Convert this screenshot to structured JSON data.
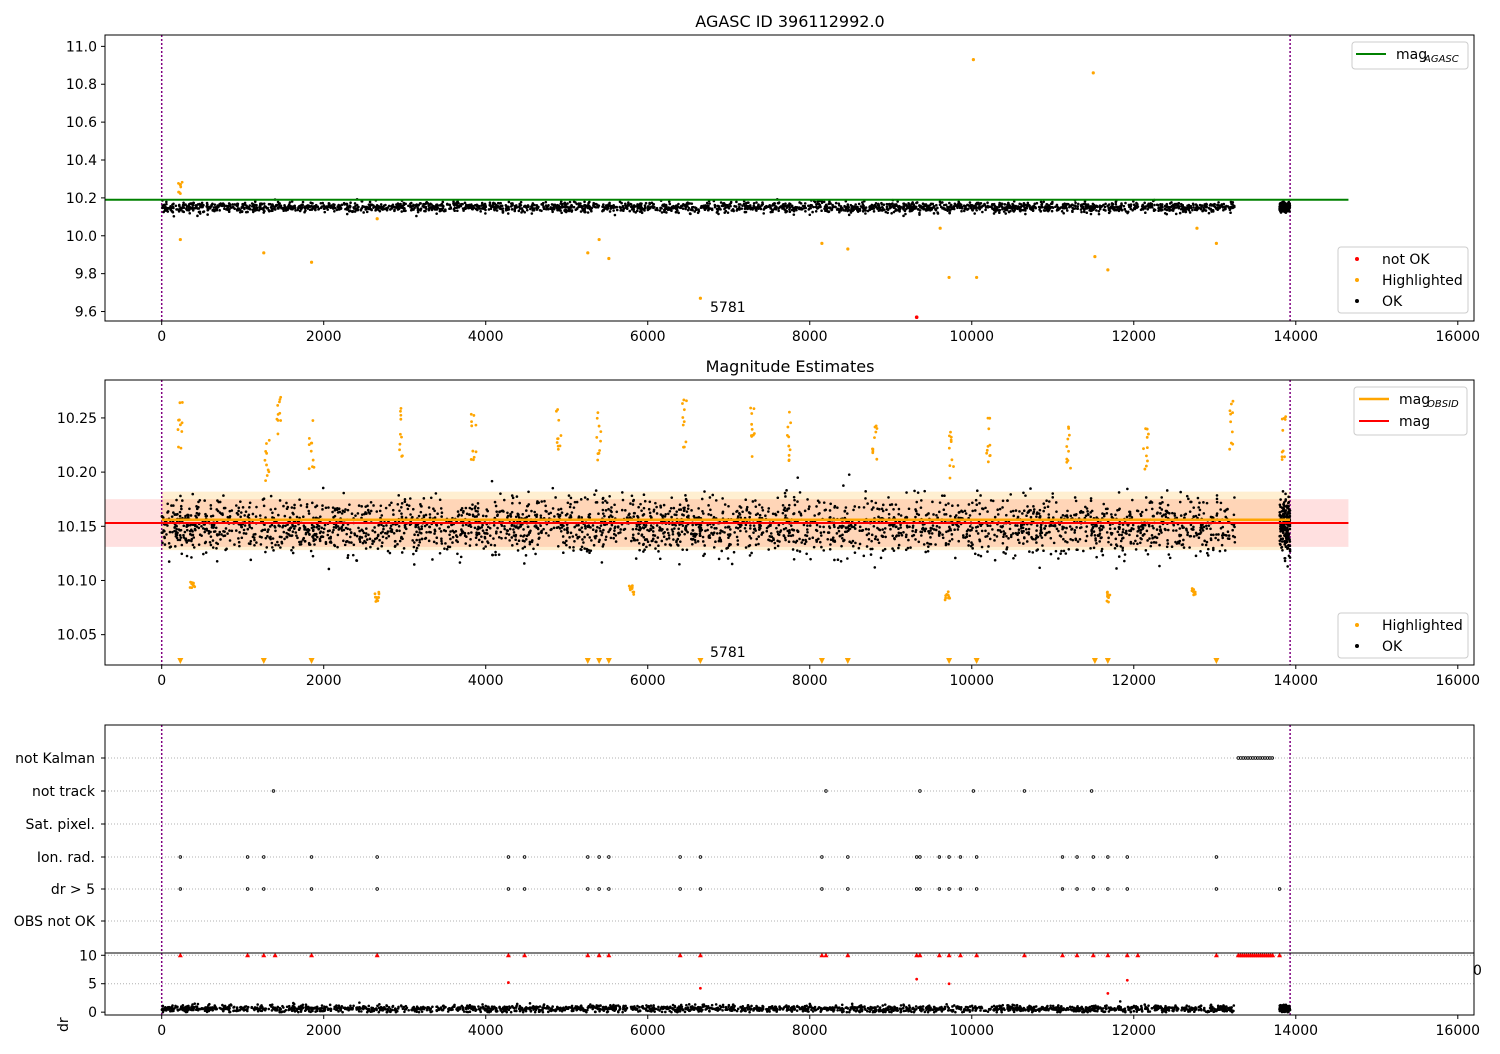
{
  "chart_data": [
    {
      "type": "scatter",
      "title": "AGASC ID 396112992.0",
      "xlim": [
        -700,
        16200
      ],
      "ylim": [
        9.55,
        11.06
      ],
      "xticks": [
        "0",
        "2000",
        "4000",
        "6000",
        "8000",
        "10000",
        "12000",
        "14000",
        "16000"
      ],
      "yticks": [
        "9.6",
        "9.8",
        "10.0",
        "10.2",
        "10.4",
        "10.6",
        "10.8",
        "11.0"
      ],
      "annotation": "5781",
      "vlines": [
        0,
        13930
      ],
      "series": [
        {
          "name": "mag",
          "sub": "AGASC",
          "kind": "line",
          "color": "#008000",
          "y": 10.19,
          "x_range": [
            -700,
            14650
          ]
        },
        {
          "name": "not OK",
          "kind": "points",
          "color": "#ff0000",
          "points": [
            [
              9320,
              9.57
            ]
          ]
        },
        {
          "name": "Highlighted",
          "kind": "points",
          "color": "#ffa500",
          "points": [
            [
              230,
              10.27
            ],
            [
              230,
              9.98
            ],
            [
              1260,
              9.91
            ],
            [
              1850,
              9.86
            ],
            [
              2660,
              10.09
            ],
            [
              5260,
              9.91
            ],
            [
              5400,
              9.98
            ],
            [
              5520,
              9.88
            ],
            [
              6650,
              9.67
            ],
            [
              8150,
              9.96
            ],
            [
              8470,
              9.93
            ],
            [
              9610,
              10.04
            ],
            [
              9720,
              9.78
            ],
            [
              10020,
              10.93
            ],
            [
              10060,
              9.78
            ],
            [
              11500,
              10.86
            ],
            [
              11520,
              9.89
            ],
            [
              11680,
              9.82
            ],
            [
              12780,
              10.04
            ],
            [
              13020,
              9.96
            ]
          ]
        },
        {
          "name": "OK",
          "kind": "band",
          "color": "#000000",
          "center": 10.15,
          "spread": 0.03
        }
      ]
    },
    {
      "type": "scatter",
      "title": "Magnitude Estimates",
      "xlim": [
        -700,
        16200
      ],
      "ylim": [
        10.022,
        10.285
      ],
      "xticks": [
        "0",
        "2000",
        "4000",
        "6000",
        "8000",
        "10000",
        "12000",
        "14000",
        "16000"
      ],
      "yticks": [
        "10.05",
        "10.10",
        "10.15",
        "10.20",
        "10.25"
      ],
      "annotation": "5781",
      "vlines": [
        0,
        13930
      ],
      "series": [
        {
          "name": "mag",
          "sub": "OBSID",
          "kind": "line",
          "color": "#ffa500",
          "y": 10.156,
          "x_range": [
            0,
            13930
          ]
        },
        {
          "name": "mag",
          "kind": "line",
          "color": "#ff0000",
          "y": 10.153,
          "x_range": [
            -700,
            14650
          ],
          "band": [
            10.131,
            10.175
          ]
        },
        {
          "name": "Highlighted",
          "kind": "points",
          "color": "#ffa500",
          "points": [
            [
              230,
              10.27
            ],
            [
              1300,
              10.24
            ],
            [
              1450,
              10.27
            ],
            [
              1850,
              10.25
            ],
            [
              2950,
              10.26
            ],
            [
              3850,
              10.26
            ],
            [
              4900,
              10.27
            ],
            [
              5400,
              10.26
            ],
            [
              6450,
              10.27
            ],
            [
              7300,
              10.26
            ],
            [
              7750,
              10.26
            ],
            [
              8800,
              10.25
            ],
            [
              9750,
              10.24
            ],
            [
              10200,
              10.25
            ],
            [
              11200,
              10.25
            ],
            [
              12150,
              10.25
            ],
            [
              13200,
              10.27
            ],
            [
              13850,
              10.26
            ],
            [
              380,
              10.09
            ],
            [
              2660,
              10.08
            ],
            [
              9700,
              10.08
            ],
            [
              11680,
              10.08
            ],
            [
              12740,
              10.085
            ],
            [
              5800,
              10.087
            ]
          ],
          "markers_bottom": [
            230,
            1260,
            1850,
            5260,
            5400,
            5520,
            6650,
            8150,
            8470,
            9720,
            10060,
            11520,
            11680,
            13020
          ]
        },
        {
          "name": "OK",
          "kind": "band",
          "color": "#000000",
          "center": 10.15,
          "spread": 0.028
        }
      ]
    },
    {
      "type": "scatter",
      "title": "",
      "xlim": [
        -700,
        16200
      ],
      "categories": [
        "not Kalman",
        "not track",
        "Sat. pixel.",
        "Ion. rad.",
        "dr > 5",
        "OBS not OK"
      ],
      "flag_points": {
        "not Kalman": [
          [
            13290,
            13730
          ]
        ],
        "not track": [
          1380,
          8200,
          9360,
          10020,
          10650,
          11480
        ],
        "Sat. pixel.": [],
        "Ion. rad.": [
          230,
          1060,
          1260,
          1850,
          2660,
          4280,
          4480,
          5260,
          5400,
          5520,
          6400,
          6650,
          8150,
          8470,
          9320,
          9360,
          9600,
          9720,
          9860,
          10060,
          11120,
          11300,
          11500,
          11680,
          11920,
          13020
        ],
        "dr > 5": [
          230,
          1060,
          1260,
          1850,
          2660,
          4280,
          4480,
          5260,
          5400,
          5520,
          6400,
          6650,
          8150,
          8470,
          9320,
          9360,
          9600,
          9720,
          9860,
          10060,
          11120,
          11300,
          11500,
          11680,
          11920,
          13020,
          13800
        ],
        "OBS not OK": []
      }
    },
    {
      "type": "scatter",
      "ylabel": "dr",
      "xlim": [
        -700,
        16200
      ],
      "ylim": [
        -0.5,
        10.4
      ],
      "xticks": [
        "0",
        "2000",
        "4000",
        "6000",
        "8000",
        "10000",
        "12000",
        "14000",
        "16000"
      ],
      "yticks": [
        "0",
        "5",
        "10"
      ],
      "right_clip_label": "0",
      "series": [
        {
          "name": "dr capped",
          "color": "#ff0000",
          "y": 10,
          "x": [
            230,
            1060,
            1260,
            1400,
            1850,
            2660,
            4280,
            4480,
            5260,
            5400,
            5520,
            6400,
            6650,
            8150,
            8200,
            8470,
            9320,
            9360,
            9600,
            9720,
            9860,
            10060,
            10650,
            11120,
            11300,
            11500,
            11680,
            11920,
            12050,
            13020,
            13800
          ],
          "range": [
            13290,
            13730
          ]
        },
        {
          "name": "dr mid",
          "color": "#ff0000",
          "points": [
            [
              4280,
              5.2
            ],
            [
              6650,
              4.2
            ],
            [
              9320,
              5.8
            ],
            [
              9720,
              5.0
            ],
            [
              11680,
              3.3
            ],
            [
              11920,
              5.6
            ]
          ]
        },
        {
          "name": "dr",
          "color": "#000000",
          "center": 0.6,
          "spread": 0.5
        }
      ]
    }
  ]
}
